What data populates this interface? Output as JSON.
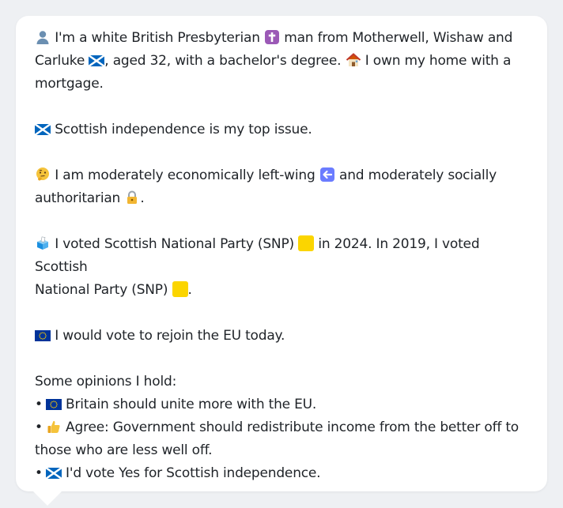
{
  "profile": {
    "intro_line_1": "I'm a white British Presbyterian",
    "intro_line_2": "man from Motherwell, Wishaw and",
    "intro_line_3": "Carluke",
    "intro_line_4": ", aged 32, with a bachelor's degree.",
    "intro_line_5": "I own my home with a",
    "intro_line_6": "mortgage."
  },
  "top_issue": {
    "text": "Scottish independence is my top issue."
  },
  "politics": {
    "line_1_start": "I am moderately economically left-wing",
    "line_1_end": "and moderately socially",
    "line_2": "authoritarian",
    "line_2_end": "."
  },
  "votes": {
    "line_1_start": "I voted Scottish National Party (SNP)",
    "line_1_end": "in 2024. In 2019, I voted Scottish",
    "line_2": "National Party (SNP)",
    "line_2_end": ".",
    "party_color": "#fdf38e"
  },
  "eu": {
    "text": "I would vote to rejoin the EU today."
  },
  "opinions": {
    "heading": "Some opinions I hold:",
    "items": [
      {
        "icon": "eu-flag-icon",
        "text": "Britain should unite more with the EU."
      },
      {
        "icon": "thumbs-up-icon",
        "text_line_1": "Agree: Government should redistribute income from the better off to",
        "text_line_2": "those who are less well off."
      },
      {
        "icon": "scotland-flag-icon",
        "text": "I'd vote Yes for Scottish independence."
      }
    ]
  },
  "colors": {
    "background": "#eef0f3",
    "bubble": "#ffffff",
    "text": "#1f2328",
    "scotland_blue": "#0065bd",
    "eu_blue": "#003399",
    "eu_star": "#ffcc00",
    "cross_purple": "#8e44ad",
    "arrow_blue": "#6b7cff",
    "ballot_blue": "#1b8fe0"
  }
}
